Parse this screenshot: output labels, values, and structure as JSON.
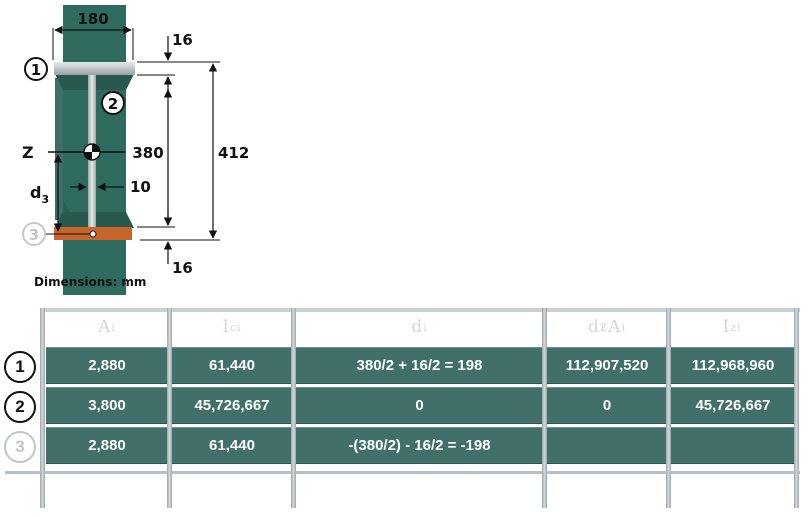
{
  "diagram": {
    "dims": {
      "flange_width": "180",
      "top_flange_t": "16",
      "web_h": "380",
      "total_h": "412",
      "web_t": "10",
      "bottom_flange_t": "16"
    },
    "labels": {
      "axis": "Z",
      "d_main": "d",
      "d_sub": "3",
      "units": "Dimensions: mm"
    },
    "part_numbers": [
      "1",
      "2",
      "3"
    ],
    "colors": {
      "steel": "#2f6a5e",
      "flange_top": "#b5bbbd",
      "flange_bottom": "#c8652a",
      "web": "#c7cdcf"
    }
  },
  "table": {
    "headers": [
      {
        "main": "A",
        "sub": "i"
      },
      {
        "main": "I",
        "sub": "ci"
      },
      {
        "main": "d",
        "sub": "i"
      },
      {
        "main": "d",
        "sup": "2",
        "sub": "i",
        "main2": "A",
        "sub2": "i"
      },
      {
        "main": "I",
        "sub": "zi"
      }
    ],
    "rows": [
      {
        "label": "1",
        "faded": false,
        "cells": [
          "2,880",
          "61,440",
          "380/2 + 16/2 = 198",
          "112,907,520",
          "112,968,960"
        ]
      },
      {
        "label": "2",
        "faded": false,
        "cells": [
          "3,800",
          "45,726,667",
          "0",
          "0",
          "45,726,667"
        ]
      },
      {
        "label": "3",
        "faded": true,
        "cells": [
          "2,880",
          "61,440",
          "-(380/2) - 16/2 = -198",
          "",
          ""
        ]
      }
    ]
  }
}
